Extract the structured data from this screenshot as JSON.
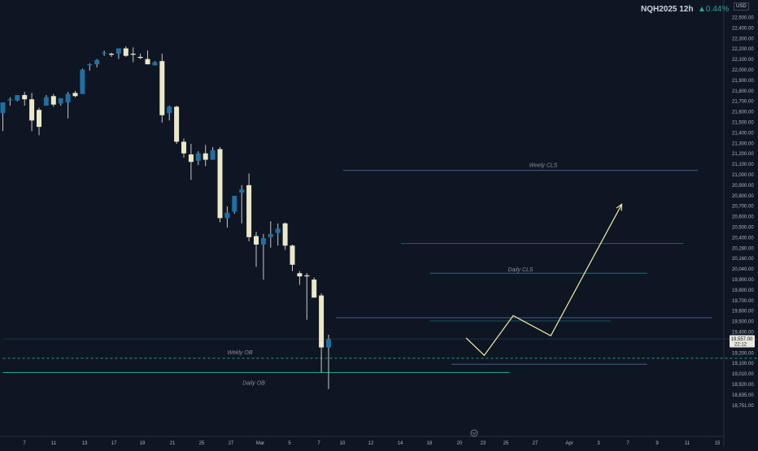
{
  "header": {
    "symbol": "NQH2025 12h",
    "change": "▲0.44%",
    "currency": "USD"
  },
  "colors": {
    "background": "#0e1624",
    "bull_candle": "#1f6fa3",
    "bear_candle": "#ebe7c9",
    "wick": "#c8c8c0",
    "projection": "#f2eba5",
    "line_blue": "#4a5a8c",
    "line_green": "#1fa372",
    "line_teal": "#1f6f74"
  },
  "chart_data": {
    "type": "candlestick",
    "y_axis_labels": [
      "22,500.00",
      "22,400.00",
      "22,300.00",
      "22,200.00",
      "22,100.00",
      "22,000.00",
      "21,900.00",
      "21,800.00",
      "21,700.00",
      "21,600.00",
      "21,500.00",
      "21,400.00",
      "21,300.00",
      "21,200.00",
      "21,100.00",
      "21,000.00",
      "20,900.00",
      "20,800.00",
      "20,700.00",
      "20,600.00",
      "20,500.00",
      "20,400.00",
      "20,280.00",
      "20,160.00",
      "20,040.00",
      "19,900.00",
      "19,800.00",
      "19,700.00",
      "19,600.00",
      "19,500.00",
      "19,400.00",
      "19,300.00",
      "19,200.00",
      "19,100.00",
      "19,010.00",
      "18,920.00",
      "18,835.00",
      "18,751.00"
    ],
    "x_axis_labels": [
      "7",
      "11",
      "13",
      "17",
      "19",
      "21",
      "25",
      "27",
      "Mar",
      "5",
      "7",
      "10",
      "12",
      "14",
      "18",
      "20",
      "23",
      "25",
      "27",
      "Apr",
      "3",
      "7",
      "9",
      "11",
      "15"
    ],
    "price_label": {
      "value": "19,557.00",
      "countdown": "22:12"
    },
    "candles": [
      {
        "o": 21690,
        "h": 21790,
        "l": 21520,
        "c": 21790
      },
      {
        "o": 21810,
        "h": 21840,
        "l": 21760,
        "c": 21820
      },
      {
        "o": 21810,
        "h": 21860,
        "l": 21800,
        "c": 21860
      },
      {
        "o": 21860,
        "h": 21890,
        "l": 21760,
        "c": 21820
      },
      {
        "o": 21820,
        "h": 21880,
        "l": 21520,
        "c": 21620
      },
      {
        "o": 21720,
        "h": 21740,
        "l": 21480,
        "c": 21560
      },
      {
        "o": 21760,
        "h": 21860,
        "l": 21760,
        "c": 21840
      },
      {
        "o": 21850,
        "h": 21870,
        "l": 21750,
        "c": 21770
      },
      {
        "o": 21780,
        "h": 21830,
        "l": 21760,
        "c": 21830
      },
      {
        "o": 21790,
        "h": 21890,
        "l": 21640,
        "c": 21870
      },
      {
        "o": 21880,
        "h": 21900,
        "l": 21840,
        "c": 21850
      },
      {
        "o": 21870,
        "h": 22110,
        "l": 21870,
        "c": 22100
      },
      {
        "o": 22140,
        "h": 22160,
        "l": 22090,
        "c": 22150
      },
      {
        "o": 22150,
        "h": 22200,
        "l": 22120,
        "c": 22190
      },
      {
        "o": 22260,
        "h": 22280,
        "l": 22230,
        "c": 22260
      },
      {
        "o": 22250,
        "h": 22260,
        "l": 22220,
        "c": 22240
      },
      {
        "o": 22250,
        "h": 22300,
        "l": 22200,
        "c": 22300
      },
      {
        "o": 22300,
        "h": 22320,
        "l": 22220,
        "c": 22230
      },
      {
        "o": 22250,
        "h": 22310,
        "l": 22170,
        "c": 22240
      },
      {
        "o": 22220,
        "h": 22250,
        "l": 22200,
        "c": 22210
      },
      {
        "o": 22200,
        "h": 22280,
        "l": 22150,
        "c": 22150
      },
      {
        "o": 22140,
        "h": 22180,
        "l": 22140,
        "c": 22170
      },
      {
        "o": 22180,
        "h": 22250,
        "l": 21600,
        "c": 21670
      },
      {
        "o": 21690,
        "h": 21760,
        "l": 21620,
        "c": 21750
      },
      {
        "o": 21750,
        "h": 21760,
        "l": 21400,
        "c": 21420
      },
      {
        "o": 21420,
        "h": 21450,
        "l": 21270,
        "c": 21310
      },
      {
        "o": 21300,
        "h": 21400,
        "l": 21060,
        "c": 21230
      },
      {
        "o": 21240,
        "h": 21330,
        "l": 21200,
        "c": 21310
      },
      {
        "o": 21310,
        "h": 21390,
        "l": 21190,
        "c": 21250
      },
      {
        "o": 21250,
        "h": 21370,
        "l": 21250,
        "c": 21340
      },
      {
        "o": 21350,
        "h": 21370,
        "l": 20660,
        "c": 20700
      },
      {
        "o": 20700,
        "h": 20810,
        "l": 20610,
        "c": 20750
      },
      {
        "o": 20760,
        "h": 20910,
        "l": 20740,
        "c": 20910
      },
      {
        "o": 20940,
        "h": 21010,
        "l": 20650,
        "c": 20970
      },
      {
        "o": 21010,
        "h": 21120,
        "l": 20480,
        "c": 20520
      },
      {
        "o": 20530,
        "h": 20570,
        "l": 20240,
        "c": 20450
      },
      {
        "o": 20450,
        "h": 20550,
        "l": 20120,
        "c": 20510
      },
      {
        "o": 20520,
        "h": 20670,
        "l": 20420,
        "c": 20550
      },
      {
        "o": 20560,
        "h": 20650,
        "l": 20440,
        "c": 20600
      },
      {
        "o": 20650,
        "h": 20660,
        "l": 20400,
        "c": 20440
      },
      {
        "o": 20440,
        "h": 20450,
        "l": 20200,
        "c": 20260
      },
      {
        "o": 20180,
        "h": 20200,
        "l": 20070,
        "c": 20150
      },
      {
        "o": 20160,
        "h": 20180,
        "l": 19740,
        "c": 20150
      },
      {
        "o": 20120,
        "h": 20140,
        "l": 19950,
        "c": 19950
      },
      {
        "o": 19970,
        "h": 19990,
        "l": 19260,
        "c": 19480
      },
      {
        "o": 19480,
        "h": 19600,
        "l": 19120,
        "c": 19557
      }
    ],
    "levels": [
      {
        "name": "Weely CLS",
        "price": 21150,
        "from": 47,
        "to": 96
      },
      {
        "name": "",
        "price": 20460,
        "from": 55,
        "to": 94
      },
      {
        "name": "Daily CLS",
        "price": 20180,
        "from": 59,
        "to": 89
      },
      {
        "name": "",
        "price": 19760,
        "from": 46,
        "to": 98
      },
      {
        "name": "",
        "price": 19730,
        "from": 59,
        "to": 84
      },
      {
        "name": "",
        "price": 19560,
        "from": 0,
        "to": 136
      },
      {
        "name": "Wekly OB",
        "price": 19380,
        "from": 0,
        "to": 120
      },
      {
        "name": "",
        "price": 19330,
        "from": 62,
        "to": 89
      },
      {
        "name": "Daily OB",
        "price": 19260,
        "from": 0,
        "to": 70
      }
    ],
    "projection": [
      {
        "i": 64,
        "p": 19570
      },
      {
        "i": 66.5,
        "p": 19405
      },
      {
        "i": 70.5,
        "p": 19780
      },
      {
        "i": 75.7,
        "p": 19590
      },
      {
        "i": 85.5,
        "p": 20830
      }
    ],
    "grid": false,
    "legend": "none"
  }
}
